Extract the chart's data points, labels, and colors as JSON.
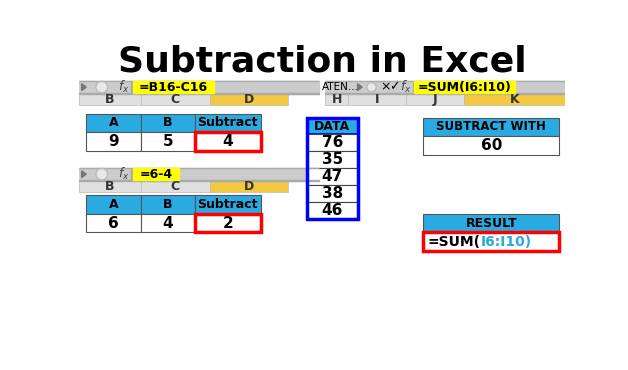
{
  "title": "Subtraction in Excel",
  "title_fontsize": 26,
  "title_fontweight": "bold",
  "bg_color": "#ffffff",
  "cyan": "#29ABE2",
  "yellow": "#FFFF00",
  "yellow_col": "#F5C842",
  "red": "#FF0000",
  "blue_border": "#0000FF",
  "formula_bar1": "=B16-C16",
  "formula_bar2": "=SUM(I6:I10)",
  "formula_bar3": "=6-4",
  "col_headers1": [
    "B",
    "C",
    "D"
  ],
  "col_headers2": [
    "I",
    "J",
    "K"
  ],
  "table1_headers": [
    "A",
    "B",
    "Subtract"
  ],
  "table1_row": [
    "9",
    "5",
    "4"
  ],
  "table2_headers": [
    "A",
    "B",
    "Subtract"
  ],
  "table2_row": [
    "6",
    "4",
    "2"
  ],
  "data_label": "DATA",
  "data_values": [
    "76",
    "35",
    "47",
    "38",
    "46"
  ],
  "subtract_with_label": "SUBTRACT WITH",
  "subtract_with_value": "60",
  "result_label": "RESULT",
  "result_prefix": "=SUM(",
  "result_suffix": "I6:I10)"
}
